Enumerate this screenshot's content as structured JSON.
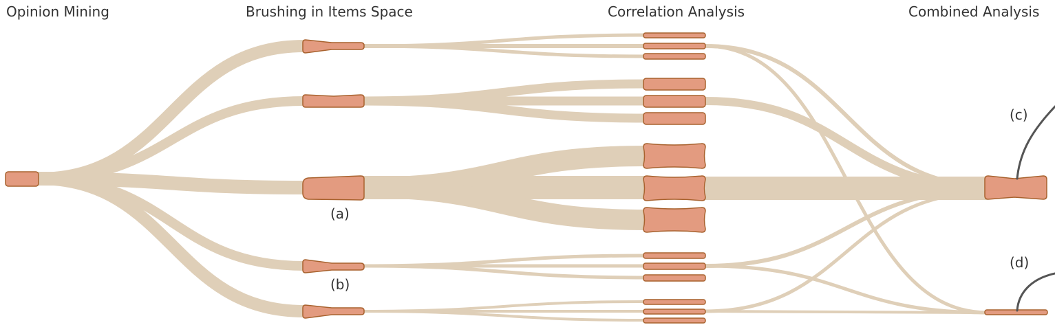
{
  "stages": [
    {
      "id": "opinion",
      "label": "Opinion Mining"
    },
    {
      "id": "brushing",
      "label": "Brushing in Items Space"
    },
    {
      "id": "correlation",
      "label": "Correlation Analysis"
    },
    {
      "id": "combined",
      "label": "Combined Analysis"
    }
  ],
  "callouts": {
    "a": "(a)",
    "b": "(b)",
    "c": "(c)",
    "d": "(d)"
  },
  "colors": {
    "flow": "#dfcfb8",
    "node_fill": "#e39b80",
    "node_stroke": "#a8622e",
    "connector": "#555555"
  }
}
